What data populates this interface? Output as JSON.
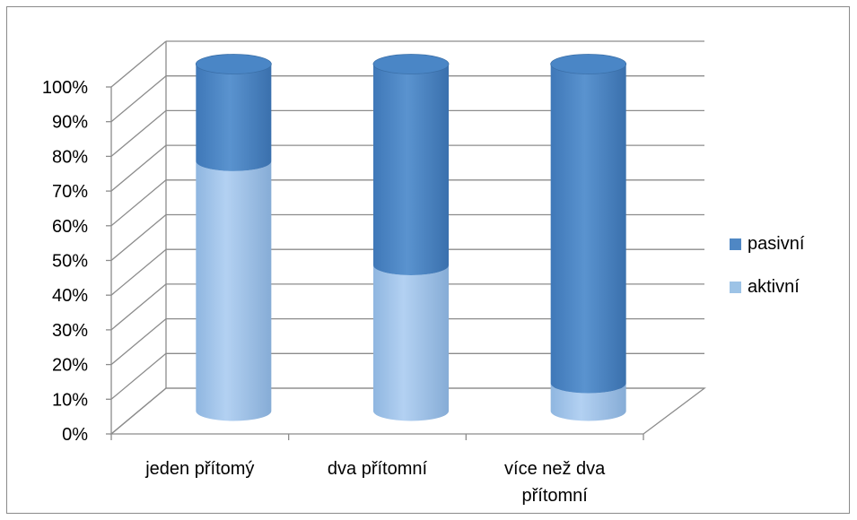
{
  "chart_data": {
    "type": "bar",
    "stacked": "percent",
    "style": "3d-cylinder",
    "categories": [
      [
        "jeden přítomý"
      ],
      [
        "dva přítomní"
      ],
      [
        "více než dva",
        "přítomní"
      ]
    ],
    "series": [
      {
        "name": "aktivní",
        "values": [
          72,
          42,
          8
        ],
        "color": "#9dc3e6"
      },
      {
        "name": "pasivní",
        "values": [
          28,
          58,
          92
        ],
        "color": "#4f87c4"
      }
    ],
    "y_ticks": [
      "0%",
      "10%",
      "20%",
      "30%",
      "40%",
      "50%",
      "60%",
      "70%",
      "80%",
      "90%",
      "100%"
    ],
    "ylim": [
      0,
      100
    ],
    "grid": true,
    "legend_position": "right",
    "legend_order": [
      "pasivní",
      "aktivní"
    ]
  }
}
